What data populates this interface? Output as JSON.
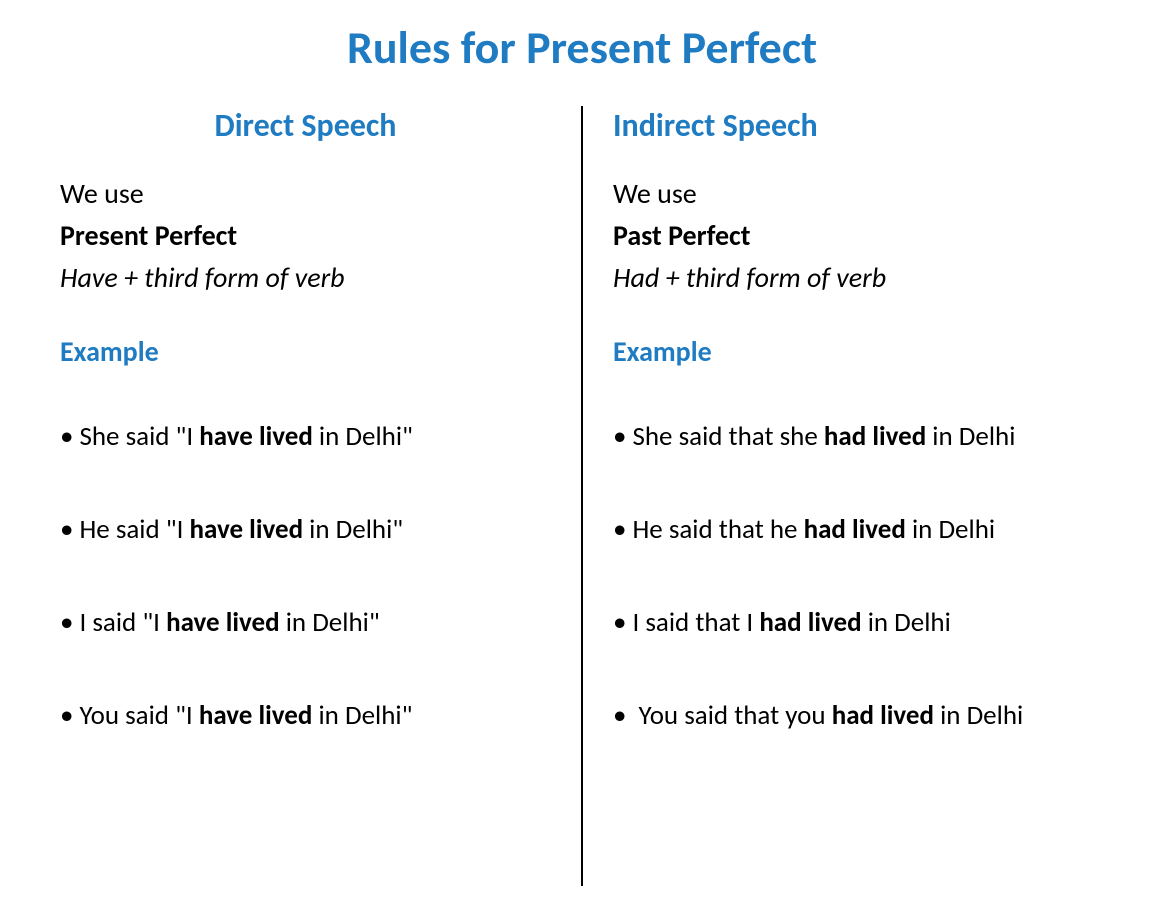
{
  "title": "Rules for Present Perfect",
  "left": {
    "heading": "Direct Speech",
    "intro_line1": "We use",
    "tense_name": "Present Perfect",
    "formula": "Have + third form of verb",
    "example_label": "Example",
    "examples": [
      {
        "pre": "She said \"I ",
        "bold": "have lived",
        "post": " in Delhi\""
      },
      {
        "pre": "He said \"I ",
        "bold": "have lived",
        "post": " in Delhi\""
      },
      {
        "pre": "I said \"I ",
        "bold": "have lived",
        "post": " in Delhi\""
      },
      {
        "pre": "You said \"I ",
        "bold": "have lived",
        "post": " in Delhi\""
      }
    ]
  },
  "right": {
    "heading": "Indirect Speech",
    "intro_line1": "We use",
    "tense_name": "Past Perfect",
    "formula": "Had + third form of verb",
    "example_label": "Example",
    "examples": [
      {
        "pre": "She said that she ",
        "bold": "had lived",
        "post": " in Delhi"
      },
      {
        "pre": "He said that he ",
        "bold": "had lived",
        "post": " in Delhi"
      },
      {
        "pre": "I said that I ",
        "bold": "had lived",
        "post": " in Delhi"
      },
      {
        "pre": " You said that you ",
        "bold": "had lived",
        "post": " in Delhi"
      }
    ]
  },
  "colors": {
    "heading_blue": "#1f7bc2",
    "text_black": "#000000",
    "background": "#ffffff"
  },
  "fonts": {
    "title_size": 46,
    "heading_size": 32,
    "body_size": 28,
    "example_size": 27
  }
}
